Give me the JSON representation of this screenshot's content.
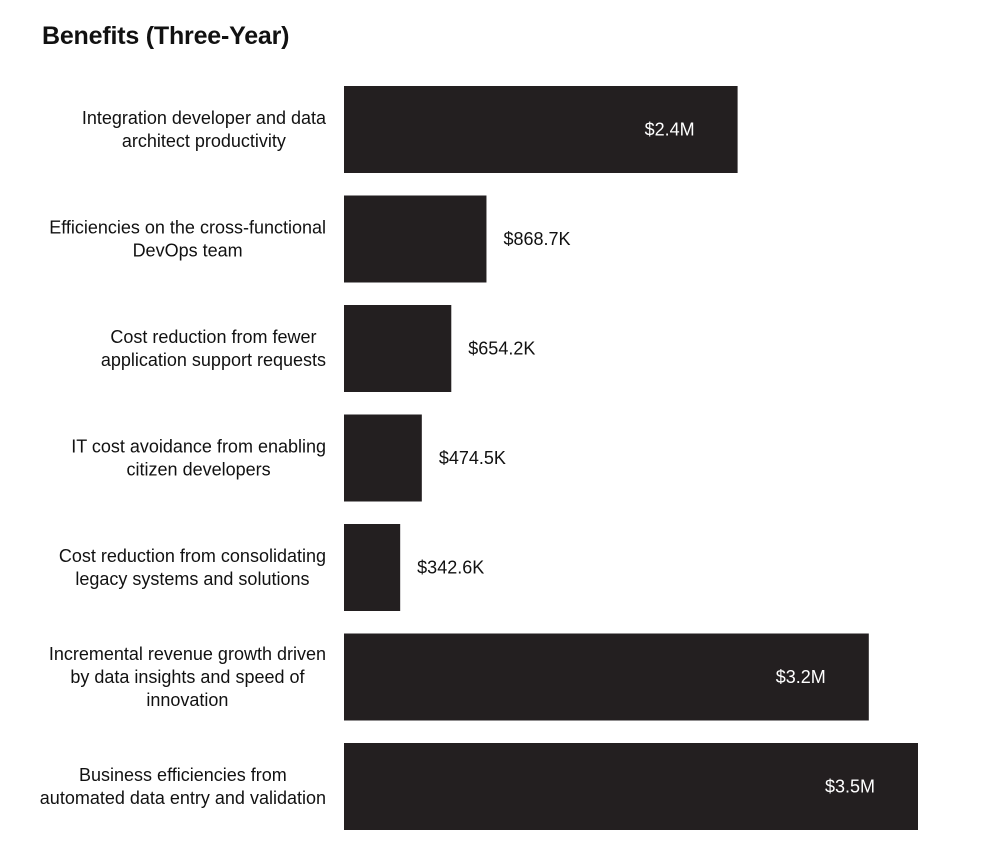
{
  "chart_data": {
    "type": "bar",
    "orientation": "horizontal",
    "title": "Benefits (Three-Year)",
    "xlabel": "",
    "ylabel": "",
    "unit": "USD",
    "grid": false,
    "legend": "none",
    "bar_color": "#231f20",
    "inside_label_color": "#ffffff",
    "outside_label_color": "#111111",
    "categories": [
      "Integration developer and data architect productivity",
      "Efficiencies on the cross-functional DevOps team",
      "Cost reduction from fewer application support requests",
      "IT cost avoidance from enabling citizen developers",
      "Cost reduction from consolidating legacy systems and solutions",
      "Incremental revenue growth driven by data insights and speed of innovation",
      "Business efficiencies from automated data entry and validation"
    ],
    "category_lines": [
      [
        "Integration developer and data",
        "architect productivity"
      ],
      [
        "Efficiencies on the cross-functional",
        "DevOps team"
      ],
      [
        "Cost reduction from fewer",
        "application support requests"
      ],
      [
        "IT cost avoidance from enabling",
        "citizen developers"
      ],
      [
        "Cost reduction from consolidating",
        "legacy systems and solutions"
      ],
      [
        "Incremental revenue growth driven",
        "by data insights and speed of",
        "innovation"
      ],
      [
        "Business efficiencies from",
        "automated data entry and validation"
      ]
    ],
    "values": [
      2400000,
      868700,
      654200,
      474500,
      342600,
      3200000,
      3500000
    ],
    "value_labels": [
      "$2.4M",
      "$868.7K",
      "$654.2K",
      "$474.5K",
      "$342.6K",
      "$3.2M",
      "$3.5M"
    ],
    "label_inside": [
      true,
      false,
      false,
      false,
      false,
      true,
      true
    ],
    "xlim": [
      0,
      3500000
    ]
  }
}
